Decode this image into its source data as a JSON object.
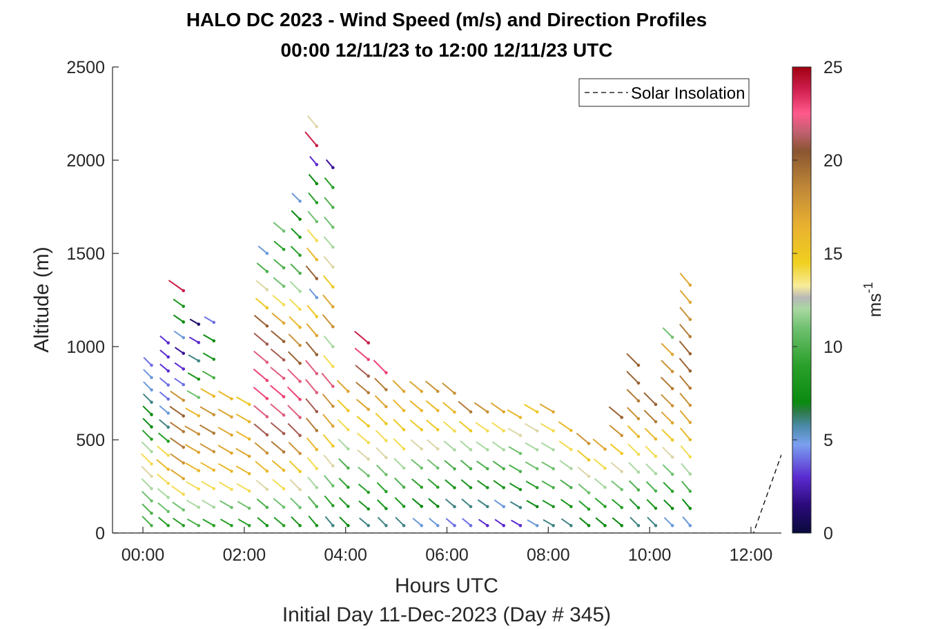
{
  "chart_data": {
    "type": "wind_barb_profile",
    "title_lines": [
      "HALO DC 2023 - Wind Speed (m/s) and Direction Profiles",
      "00:00 12/11/23 to 12:00 12/11/23  UTC"
    ],
    "xlabel": "Hours UTC",
    "sublabel": "Initial Day 11-Dec-2023 (Day # 345)",
    "ylabel": "Altitude (m)",
    "colorbar_label_main": "ms",
    "colorbar_label_sup": "-1",
    "x_ticks": [
      "00:00",
      "02:00",
      "04:00",
      "06:00",
      "08:00",
      "10:00",
      "12:00"
    ],
    "x_tick_hours": [
      0,
      2,
      4,
      6,
      8,
      10,
      12
    ],
    "xlim": [
      -0.6,
      12.6
    ],
    "y_ticks": [
      "0",
      "500",
      "1000",
      "1500",
      "2000",
      "2500"
    ],
    "ylim": [
      0,
      2500
    ],
    "colorbar_ticks": [
      "0",
      "5",
      "10",
      "15",
      "20",
      "25"
    ],
    "colorbar_range": [
      0,
      25
    ],
    "legend": {
      "entries": [
        "Solar Insolation"
      ],
      "location": "top-right"
    },
    "solar_insolation": {
      "style": "dashed",
      "x": [
        -0.6,
        12.05,
        12.6
      ],
      "y": [
        0,
        0,
        420
      ]
    },
    "profiles": [
      {
        "time": 0.17,
        "top": 900,
        "dir": 315,
        "speed": [
          10,
          10,
          11,
          12,
          13,
          14,
          12,
          9,
          7,
          7,
          6,
          5,
          5,
          4
        ]
      },
      {
        "time": 0.5,
        "top": 1020,
        "dir": 310,
        "speed": [
          9,
          11,
          12,
          14,
          16,
          14,
          9,
          6,
          5,
          4,
          4,
          3,
          3,
          3
        ]
      },
      {
        "time": 0.8,
        "top": 1300,
        "dir": 305,
        "speed": [
          9,
          11,
          14,
          17,
          18,
          19,
          19,
          20,
          18,
          4,
          3,
          2,
          5,
          7,
          8,
          24
        ]
      },
      {
        "time": 1.1,
        "top": 1120,
        "dir": 300,
        "speed": [
          10,
          12,
          14,
          16,
          17,
          18,
          16,
          11,
          8,
          6,
          3,
          1
        ]
      },
      {
        "time": 1.4,
        "top": 1130,
        "dir": 300,
        "speed": [
          9,
          12,
          14,
          16,
          18,
          19,
          18,
          16,
          10,
          8,
          7,
          4
        ]
      },
      {
        "time": 1.75,
        "top": 720,
        "dir": 300,
        "speed": [
          9,
          11,
          14,
          16,
          17,
          17,
          17,
          16
        ]
      },
      {
        "time": 2.1,
        "top": 690,
        "dir": 300,
        "speed": [
          9,
          11,
          14,
          16,
          17,
          16,
          16,
          15
        ]
      },
      {
        "time": 2.45,
        "top": 1500,
        "dir": 310,
        "speed": [
          8,
          10,
          13,
          16,
          18,
          21,
          22,
          23,
          23,
          22,
          21,
          20,
          15,
          13,
          10,
          5
        ]
      },
      {
        "time": 2.78,
        "top": 1620,
        "dir": 310,
        "speed": [
          9,
          11,
          14,
          16,
          19,
          21,
          22,
          23,
          22,
          21,
          20,
          17,
          14,
          11,
          10,
          9,
          11
        ]
      },
      {
        "time": 3.1,
        "top": 1780,
        "dir": 315,
        "speed": [
          8,
          11,
          13,
          15,
          18,
          21,
          22,
          23,
          22,
          20,
          18,
          16,
          14,
          12,
          10,
          9,
          8,
          7,
          5
        ]
      },
      {
        "time": 3.43,
        "top": 2180,
        "dir": 320,
        "speed": [
          8,
          10,
          12,
          14,
          16,
          19,
          21,
          22,
          22,
          20,
          17,
          15,
          5,
          20,
          16,
          14,
          11,
          9,
          7,
          3,
          24,
          13
        ]
      },
      {
        "time": 3.75,
        "top": 1960,
        "dir": 320,
        "speed": [
          6,
          9,
          11,
          13,
          15,
          17,
          18,
          22,
          14,
          12,
          18,
          17,
          15,
          13,
          12,
          11,
          10,
          9,
          2
        ]
      },
      {
        "time": 4.05,
        "top": 760,
        "dir": 315,
        "speed": [
          7,
          8,
          9,
          10,
          12,
          14,
          15,
          17
        ]
      },
      {
        "time": 4.45,
        "top": 1020,
        "dir": 310,
        "speed": [
          6,
          8,
          9,
          11,
          13,
          14,
          15,
          17,
          19,
          21,
          23,
          24
        ]
      },
      {
        "time": 4.8,
        "top": 860,
        "dir": 315,
        "speed": [
          6,
          8,
          9,
          11,
          13,
          14,
          15,
          17,
          19,
          23
        ]
      },
      {
        "time": 5.15,
        "top": 760,
        "dir": 315,
        "speed": [
          6,
          8,
          10,
          12,
          14,
          15,
          16,
          17
        ]
      },
      {
        "time": 5.5,
        "top": 760,
        "dir": 310,
        "speed": [
          5,
          7,
          9,
          11,
          13,
          15,
          16,
          17
        ]
      },
      {
        "time": 5.82,
        "top": 760,
        "dir": 310,
        "speed": [
          5,
          7,
          9,
          11,
          13,
          15,
          16,
          18
        ]
      },
      {
        "time": 6.15,
        "top": 750,
        "dir": 310,
        "speed": [
          4,
          6,
          8,
          10,
          12,
          14,
          16,
          18
        ]
      },
      {
        "time": 6.47,
        "top": 650,
        "dir": 310,
        "speed": [
          4,
          6,
          8,
          10,
          12,
          15,
          19
        ]
      },
      {
        "time": 6.8,
        "top": 650,
        "dir": 305,
        "speed": [
          3,
          6,
          8,
          10,
          12,
          14,
          18
        ]
      },
      {
        "time": 7.12,
        "top": 650,
        "dir": 305,
        "speed": [
          3,
          5,
          8,
          10,
          12,
          14,
          17
        ]
      },
      {
        "time": 7.45,
        "top": 620,
        "dir": 300,
        "speed": [
          3,
          6,
          8,
          10,
          11,
          13,
          16
        ]
      },
      {
        "time": 7.78,
        "top": 650,
        "dir": 300,
        "speed": [
          5,
          7,
          9,
          11,
          12,
          13,
          15
        ]
      },
      {
        "time": 8.1,
        "top": 650,
        "dir": 300,
        "speed": [
          6,
          8,
          10,
          11,
          12,
          14,
          17
        ]
      },
      {
        "time": 8.45,
        "top": 550,
        "dir": 305,
        "speed": [
          6,
          8,
          10,
          12,
          14,
          16
        ]
      },
      {
        "time": 8.8,
        "top": 480,
        "dir": 310,
        "speed": [
          7,
          9,
          11,
          13,
          15,
          18
        ]
      },
      {
        "time": 9.12,
        "top": 450,
        "dir": 310,
        "speed": [
          7,
          9,
          12,
          14,
          17
        ]
      },
      {
        "time": 9.45,
        "top": 620,
        "dir": 310,
        "speed": [
          7,
          9,
          11,
          13,
          15,
          18,
          20
        ]
      },
      {
        "time": 9.78,
        "top": 900,
        "dir": 315,
        "speed": [
          6,
          8,
          10,
          12,
          14,
          16,
          18,
          19,
          20,
          20
        ]
      },
      {
        "time": 10.12,
        "top": 690,
        "dir": 315,
        "speed": [
          6,
          8,
          10,
          12,
          14,
          16,
          19,
          20
        ]
      },
      {
        "time": 10.45,
        "top": 1050,
        "dir": 315,
        "speed": [
          5,
          7,
          9,
          11,
          13,
          15,
          17,
          18,
          19,
          18,
          17,
          11
        ]
      },
      {
        "time": 10.8,
        "top": 1330,
        "dir": 320,
        "speed": [
          5,
          7,
          10,
          12,
          14,
          16,
          17,
          18,
          19,
          20,
          20,
          19,
          18,
          17,
          17
        ]
      }
    ]
  }
}
